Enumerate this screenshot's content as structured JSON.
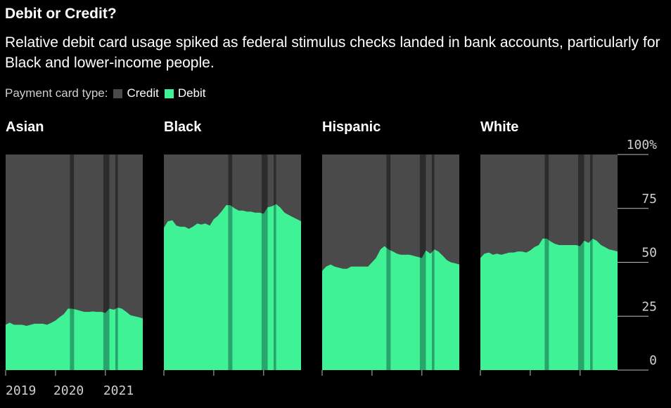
{
  "header": {
    "title": "Debit or Credit?",
    "subtitle": "Relative debit card usage spiked as federal stimulus checks landed in bank accounts, particularly for Black and lower-income people."
  },
  "legend": {
    "prefix": "Payment card type:",
    "items": [
      {
        "label": "Credit",
        "color": "#4a4a4a"
      },
      {
        "label": "Debit",
        "color": "#3ff296"
      }
    ]
  },
  "colors": {
    "credit": "#4a4a4a",
    "debit": "#3ff296",
    "stimulus_band_credit": "#2c2c2c",
    "stimulus_band_debit": "#27a56a",
    "background": "#000000"
  },
  "chart_data": {
    "type": "area",
    "stacked_percent": true,
    "ylim": [
      0,
      100
    ],
    "y_ticks": [
      "100%",
      "75",
      "50",
      "25",
      "0"
    ],
    "y_tick_values": [
      100,
      75,
      50,
      25,
      0
    ],
    "x_ticks": [
      "2019",
      "2020",
      "2021"
    ],
    "x_tick_values": [
      2019.0,
      2020.0,
      2021.0
    ],
    "xlim": [
      2019.0,
      2021.75
    ],
    "stimulus_periods": [
      {
        "start": 2020.29,
        "end": 2020.37
      },
      {
        "start": 2020.96,
        "end": 2021.08
      },
      {
        "start": 2021.2,
        "end": 2021.25
      }
    ],
    "x": [
      2019.0,
      2019.08,
      2019.17,
      2019.25,
      2019.33,
      2019.42,
      2019.5,
      2019.58,
      2019.67,
      2019.75,
      2019.83,
      2019.92,
      2020.0,
      2020.08,
      2020.17,
      2020.25,
      2020.33,
      2020.42,
      2020.5,
      2020.58,
      2020.67,
      2020.75,
      2020.83,
      2020.92,
      2021.0,
      2021.08,
      2021.17,
      2021.25,
      2021.33,
      2021.42,
      2021.5,
      2021.58,
      2021.67,
      2021.75
    ],
    "series": [
      {
        "name": "Asian",
        "values": [
          21,
          22,
          21,
          21,
          21,
          20.5,
          21,
          21.5,
          21.5,
          21.5,
          21,
          22,
          23,
          24.5,
          26,
          28.5,
          28.5,
          28,
          27.5,
          27,
          27,
          27.2,
          27,
          27,
          26.5,
          28.5,
          28,
          29,
          28.5,
          27,
          25.5,
          25,
          24.5,
          24
        ]
      },
      {
        "name": "Black",
        "values": [
          66,
          69,
          69.5,
          67,
          66.5,
          66.5,
          65.5,
          66.5,
          68,
          67.5,
          68,
          67,
          70,
          71.5,
          74,
          76.5,
          76.5,
          75,
          74,
          74,
          73.5,
          73.5,
          73,
          73,
          72.5,
          75.5,
          76,
          77,
          75.5,
          73,
          72,
          71,
          70,
          69
        ]
      },
      {
        "name": "Hispanic",
        "values": [
          46,
          48,
          49,
          48,
          47.5,
          47,
          47,
          48,
          48,
          48,
          48,
          48,
          50,
          52,
          56,
          57.5,
          56,
          55,
          54,
          53.5,
          53.5,
          53.5,
          53,
          52.5,
          52,
          55.5,
          54,
          56,
          55,
          53,
          51,
          50,
          49.5,
          49
        ]
      },
      {
        "name": "White",
        "values": [
          52,
          54,
          54.5,
          53.5,
          54,
          53.5,
          54,
          54.5,
          54.5,
          55,
          55,
          54.5,
          55.5,
          57,
          58,
          61,
          61,
          59.5,
          58.5,
          58,
          58,
          58,
          58,
          58,
          57.5,
          60,
          59,
          61,
          60,
          58,
          57,
          56,
          55.5,
          55
        ]
      }
    ]
  }
}
